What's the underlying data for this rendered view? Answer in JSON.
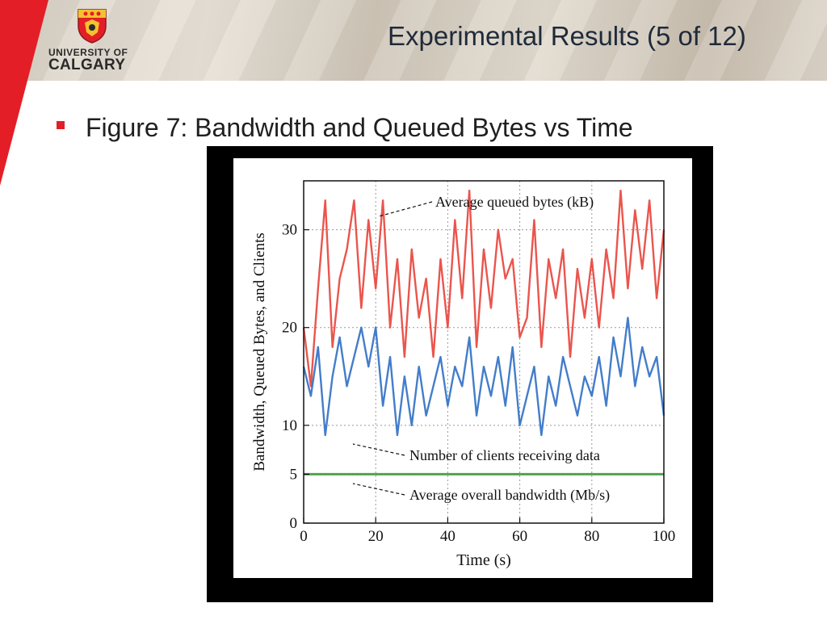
{
  "header": {
    "logo": {
      "line1": "UNIVERSITY OF",
      "line2": "CALGARY"
    },
    "title": "Experimental Results (5 of 12)"
  },
  "content": {
    "bullet_text": "Figure 7: Bandwidth and Queued Bytes vs Time"
  },
  "colors": {
    "accent_red": "#e41e26",
    "queued_series": "#e8423a",
    "clients_series": "#2f6fc4",
    "bandwidth_series": "#3f9a3a"
  },
  "chart_data": {
    "type": "line",
    "title": "",
    "xlabel": "Time (s)",
    "ylabel": "Bandwidth, Queued Bytes, and Clients",
    "xlim": [
      0,
      100
    ],
    "ylim": [
      0,
      35
    ],
    "xticks": [
      0,
      20,
      40,
      60,
      80,
      100
    ],
    "yticks": [
      0,
      5,
      10,
      20,
      30
    ],
    "x": [
      0,
      2,
      4,
      6,
      8,
      10,
      12,
      14,
      16,
      18,
      20,
      22,
      24,
      26,
      28,
      30,
      32,
      34,
      36,
      38,
      40,
      42,
      44,
      46,
      48,
      50,
      52,
      54,
      56,
      58,
      60,
      62,
      64,
      66,
      68,
      70,
      72,
      74,
      76,
      78,
      80,
      82,
      84,
      86,
      88,
      90,
      92,
      94,
      96,
      98,
      100
    ],
    "series": [
      {
        "name": "Average queued bytes (kB)",
        "values": [
          20,
          14,
          24,
          33,
          18,
          25,
          28,
          33,
          22,
          31,
          24,
          33,
          20,
          27,
          17,
          28,
          21,
          25,
          17,
          27,
          20,
          31,
          23,
          34,
          18,
          28,
          22,
          30,
          25,
          27,
          19,
          21,
          31,
          18,
          27,
          23,
          28,
          17,
          26,
          21,
          27,
          20,
          28,
          23,
          34,
          24,
          32,
          26,
          33,
          23,
          30
        ]
      },
      {
        "name": "Number of clients receiving data",
        "values": [
          16,
          13,
          18,
          9,
          15,
          19,
          14,
          17,
          20,
          16,
          20,
          12,
          17,
          9,
          15,
          10,
          16,
          11,
          14,
          17,
          12,
          16,
          14,
          19,
          11,
          16,
          13,
          17,
          12,
          18,
          10,
          13,
          16,
          9,
          15,
          12,
          17,
          14,
          11,
          15,
          13,
          17,
          12,
          19,
          15,
          21,
          14,
          18,
          15,
          17,
          11
        ]
      },
      {
        "name": "Average overall bandwidth (Mb/s)",
        "values": [
          5,
          5,
          5,
          5,
          5,
          5,
          5,
          5,
          5,
          5,
          5,
          5,
          5,
          5,
          5,
          5,
          5,
          5,
          5,
          5,
          5,
          5,
          5,
          5,
          5,
          5,
          5,
          5,
          5,
          5,
          5,
          5,
          5,
          5,
          5,
          5,
          5,
          5,
          5,
          5,
          5,
          5,
          5,
          5,
          5,
          5,
          5,
          5,
          5,
          5,
          5
        ]
      }
    ],
    "annotations": [
      {
        "text": "Average queued bytes (kB)",
        "series": 0,
        "at_x": 20,
        "at_y": 34
      },
      {
        "text": "Number of clients receiving data",
        "series": 1,
        "at_x": 12,
        "at_y": 9
      },
      {
        "text": "Average overall bandwidth (Mb/s)",
        "series": 2,
        "at_x": 12,
        "at_y": 4.5
      }
    ]
  }
}
